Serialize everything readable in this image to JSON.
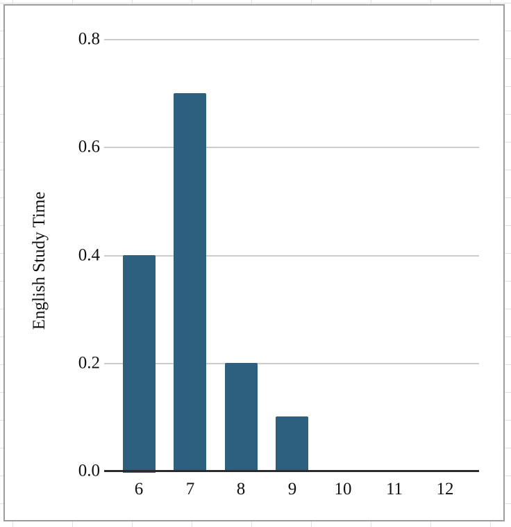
{
  "sheet": {
    "grid_color": "#e0e0e0"
  },
  "panel": {
    "background": "#ffffff",
    "border_color": "#9c9c9c"
  },
  "chart_data": {
    "type": "bar",
    "title": "",
    "xlabel": "",
    "ylabel": "English Study Time",
    "categories": [
      "6",
      "7",
      "8",
      "9",
      "10",
      "11",
      "12"
    ],
    "values": [
      0.4,
      0.7,
      0.2,
      0.1,
      0,
      0,
      0
    ],
    "ylim": [
      0,
      0.8
    ],
    "yticks": [
      0.0,
      0.2,
      0.4,
      0.6,
      0.8
    ],
    "ytick_labels": [
      "0.0",
      "0.2",
      "0.4",
      "0.6",
      "0.8"
    ],
    "grid": "horizontal",
    "legend": "none",
    "bar_color": "#2d5f7f",
    "gridline_color": "#cccccc",
    "axis_line_color": "#2b2b2b",
    "text_color": "#111111"
  }
}
